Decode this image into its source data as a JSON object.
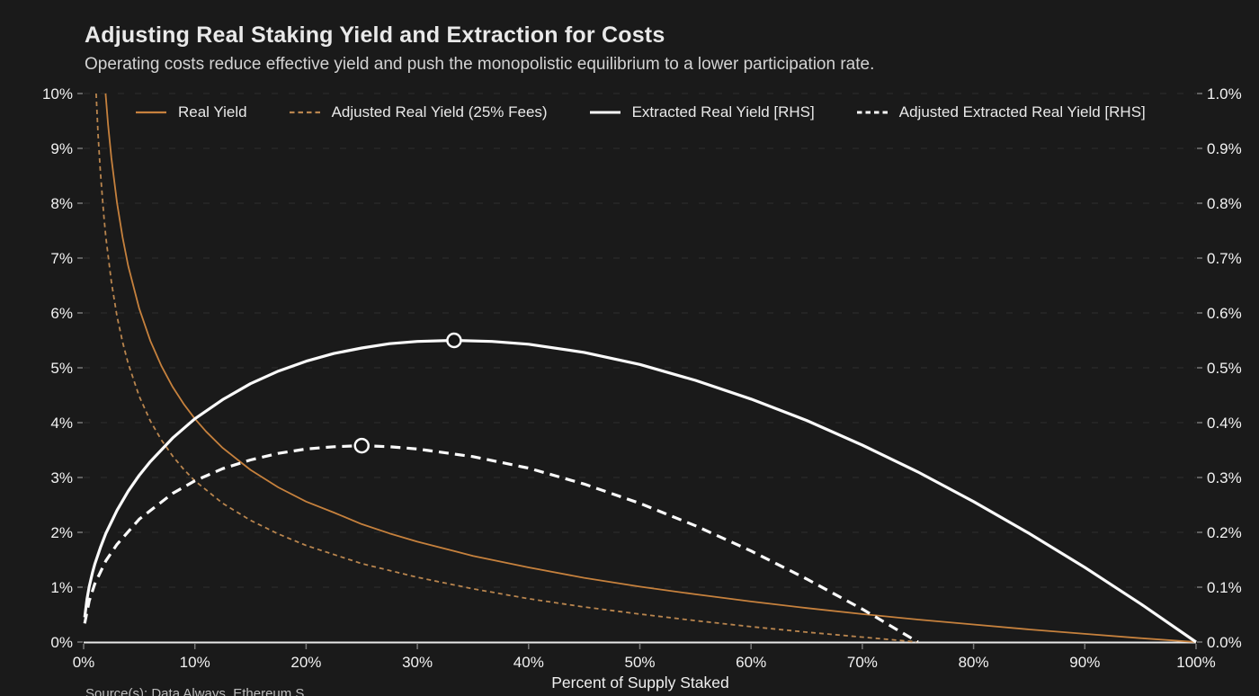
{
  "header": {
    "title": "Adjusting Real Staking Yield and Extraction for Costs",
    "subtitle": "Operating costs reduce effective yield and push the monopolistic equilibrium to a lower participation rate."
  },
  "footer": {
    "source_note": "Source(s): Data Always, Ethereum S"
  },
  "colors": {
    "background": "#1a1a1a",
    "grid": "#2f2f2f",
    "axis_line": "#e8e8e8",
    "tick_mark": "#787878",
    "tick_label": "#f2f2f2",
    "orange": "#c6813d",
    "orange_dashed": "#b9854e",
    "white": "#fafafa",
    "marker_fill": "#161616"
  },
  "chart_data": {
    "type": "line",
    "title": "Adjusting Real Staking Yield and Extraction for Costs",
    "subtitle": "Operating costs reduce effective yield and push the monopolistic equilibrium to a lower participation rate.",
    "xlabel": "Percent of Supply Staked",
    "grid": {
      "horizontal": true,
      "vertical": false,
      "style": "dashed"
    },
    "legend_position": "top",
    "x_axis": {
      "range": [
        0,
        1
      ],
      "tick_values": [
        0,
        0.1,
        0.2,
        0.3,
        0.4,
        0.5,
        0.6,
        0.7,
        0.8,
        0.9,
        1.0
      ],
      "tick_labels": [
        "0%",
        "10%",
        "20%",
        "30%",
        "40%",
        "50%",
        "60%",
        "70%",
        "80%",
        "90%",
        "100%"
      ]
    },
    "left_axis": {
      "range": [
        0,
        10
      ],
      "tick_values": [
        0,
        1,
        2,
        3,
        4,
        5,
        6,
        7,
        8,
        9,
        10
      ],
      "tick_labels": [
        "0%",
        "1%",
        "2%",
        "3%",
        "4%",
        "5%",
        "6%",
        "7%",
        "8%",
        "9%",
        "10%"
      ]
    },
    "right_axis": {
      "range": [
        0,
        1
      ],
      "tick_values": [
        0,
        0.1,
        0.2,
        0.3,
        0.4,
        0.5,
        0.6,
        0.7,
        0.8,
        0.9,
        1.0
      ],
      "tick_labels": [
        "0.0%",
        "0.1%",
        "0.2%",
        "0.3%",
        "0.4%",
        "0.5%",
        "0.6%",
        "0.7%",
        "0.8%",
        "0.9%",
        "1.0%"
      ]
    },
    "series": [
      {
        "name": "Real Yield",
        "axis": "left",
        "color": "#c6813d",
        "line_style": "solid",
        "line_width": 1.8,
        "points": [
          [
            0.0197,
            10.0
          ],
          [
            0.022,
            9.43
          ],
          [
            0.025,
            8.82
          ],
          [
            0.03,
            8.01
          ],
          [
            0.035,
            7.38
          ],
          [
            0.04,
            6.86
          ],
          [
            0.05,
            6.08
          ],
          [
            0.06,
            5.49
          ],
          [
            0.07,
            5.03
          ],
          [
            0.08,
            4.65
          ],
          [
            0.09,
            4.34
          ],
          [
            0.1,
            4.07
          ],
          [
            0.11,
            3.84
          ],
          [
            0.125,
            3.54
          ],
          [
            0.15,
            3.14
          ],
          [
            0.175,
            2.82
          ],
          [
            0.2,
            2.56
          ],
          [
            0.225,
            2.36
          ],
          [
            0.25,
            2.15
          ],
          [
            0.275,
            1.98
          ],
          [
            0.3,
            1.83
          ],
          [
            0.35,
            1.57
          ],
          [
            0.4,
            1.36
          ],
          [
            0.45,
            1.17
          ],
          [
            0.5,
            1.01
          ],
          [
            0.55,
            0.87
          ],
          [
            0.6,
            0.74
          ],
          [
            0.65,
            0.62
          ],
          [
            0.7,
            0.51
          ],
          [
            0.75,
            0.41
          ],
          [
            0.8,
            0.32
          ],
          [
            0.85,
            0.23
          ],
          [
            0.9,
            0.15
          ],
          [
            0.95,
            0.07
          ],
          [
            1.0,
            0.0
          ]
        ]
      },
      {
        "name": "Adjusted Real Yield (25% Fees)",
        "axis": "left",
        "color": "#b9854e",
        "line_style": "dashed",
        "line_width": 1.8,
        "points": [
          [
            0.0112,
            10.0
          ],
          [
            0.013,
            9.24
          ],
          [
            0.015,
            8.58
          ],
          [
            0.018,
            7.8
          ],
          [
            0.02,
            7.38
          ],
          [
            0.025,
            6.56
          ],
          [
            0.03,
            5.94
          ],
          [
            0.035,
            5.47
          ],
          [
            0.04,
            5.08
          ],
          [
            0.05,
            4.48
          ],
          [
            0.06,
            4.03
          ],
          [
            0.07,
            3.68
          ],
          [
            0.08,
            3.39
          ],
          [
            0.09,
            3.15
          ],
          [
            0.1,
            2.94
          ],
          [
            0.125,
            2.53
          ],
          [
            0.15,
            2.22
          ],
          [
            0.175,
            1.97
          ],
          [
            0.2,
            1.76
          ],
          [
            0.25,
            1.43
          ],
          [
            0.3,
            1.18
          ],
          [
            0.35,
            0.97
          ],
          [
            0.4,
            0.79
          ],
          [
            0.45,
            0.64
          ],
          [
            0.5,
            0.51
          ],
          [
            0.55,
            0.39
          ],
          [
            0.6,
            0.28
          ],
          [
            0.65,
            0.18
          ],
          [
            0.7,
            0.09
          ],
          [
            0.75,
            0.0
          ]
        ]
      },
      {
        "name": "Extracted Real Yield [RHS]",
        "axis": "right",
        "color": "#fafafa",
        "line_style": "solid",
        "line_width": 3.2,
        "peak_marker": [
          0.333,
          0.55
        ],
        "points": [
          [
            0.001,
            0.045
          ],
          [
            0.003,
            0.078
          ],
          [
            0.005,
            0.101
          ],
          [
            0.008,
            0.127
          ],
          [
            0.01,
            0.142
          ],
          [
            0.015,
            0.172
          ],
          [
            0.02,
            0.198
          ],
          [
            0.03,
            0.24
          ],
          [
            0.04,
            0.275
          ],
          [
            0.05,
            0.304
          ],
          [
            0.06,
            0.329
          ],
          [
            0.08,
            0.372
          ],
          [
            0.1,
            0.407
          ],
          [
            0.125,
            0.442
          ],
          [
            0.15,
            0.471
          ],
          [
            0.175,
            0.494
          ],
          [
            0.2,
            0.512
          ],
          [
            0.225,
            0.526
          ],
          [
            0.25,
            0.536
          ],
          [
            0.275,
            0.544
          ],
          [
            0.3,
            0.548
          ],
          [
            0.333,
            0.55
          ],
          [
            0.367,
            0.548
          ],
          [
            0.4,
            0.543
          ],
          [
            0.45,
            0.528
          ],
          [
            0.5,
            0.506
          ],
          [
            0.55,
            0.477
          ],
          [
            0.6,
            0.443
          ],
          [
            0.65,
            0.404
          ],
          [
            0.7,
            0.359
          ],
          [
            0.75,
            0.31
          ],
          [
            0.8,
            0.256
          ],
          [
            0.85,
            0.198
          ],
          [
            0.9,
            0.136
          ],
          [
            0.95,
            0.07
          ],
          [
            1.0,
            0.0
          ]
        ]
      },
      {
        "name": "Adjusted Extracted Real Yield [RHS]",
        "axis": "right",
        "color": "#fafafa",
        "line_style": "dashed",
        "line_width": 3.2,
        "peak_marker": [
          0.25,
          0.358
        ],
        "points": [
          [
            0.001,
            0.034
          ],
          [
            0.005,
            0.075
          ],
          [
            0.01,
            0.106
          ],
          [
            0.02,
            0.148
          ],
          [
            0.03,
            0.178
          ],
          [
            0.05,
            0.224
          ],
          [
            0.08,
            0.271
          ],
          [
            0.1,
            0.294
          ],
          [
            0.125,
            0.316
          ],
          [
            0.15,
            0.332
          ],
          [
            0.175,
            0.344
          ],
          [
            0.2,
            0.352
          ],
          [
            0.225,
            0.356
          ],
          [
            0.25,
            0.358
          ],
          [
            0.275,
            0.356
          ],
          [
            0.3,
            0.352
          ],
          [
            0.35,
            0.338
          ],
          [
            0.4,
            0.317
          ],
          [
            0.45,
            0.288
          ],
          [
            0.5,
            0.253
          ],
          [
            0.55,
            0.212
          ],
          [
            0.6,
            0.166
          ],
          [
            0.65,
            0.115
          ],
          [
            0.7,
            0.06
          ],
          [
            0.75,
            0.0
          ]
        ]
      }
    ]
  }
}
